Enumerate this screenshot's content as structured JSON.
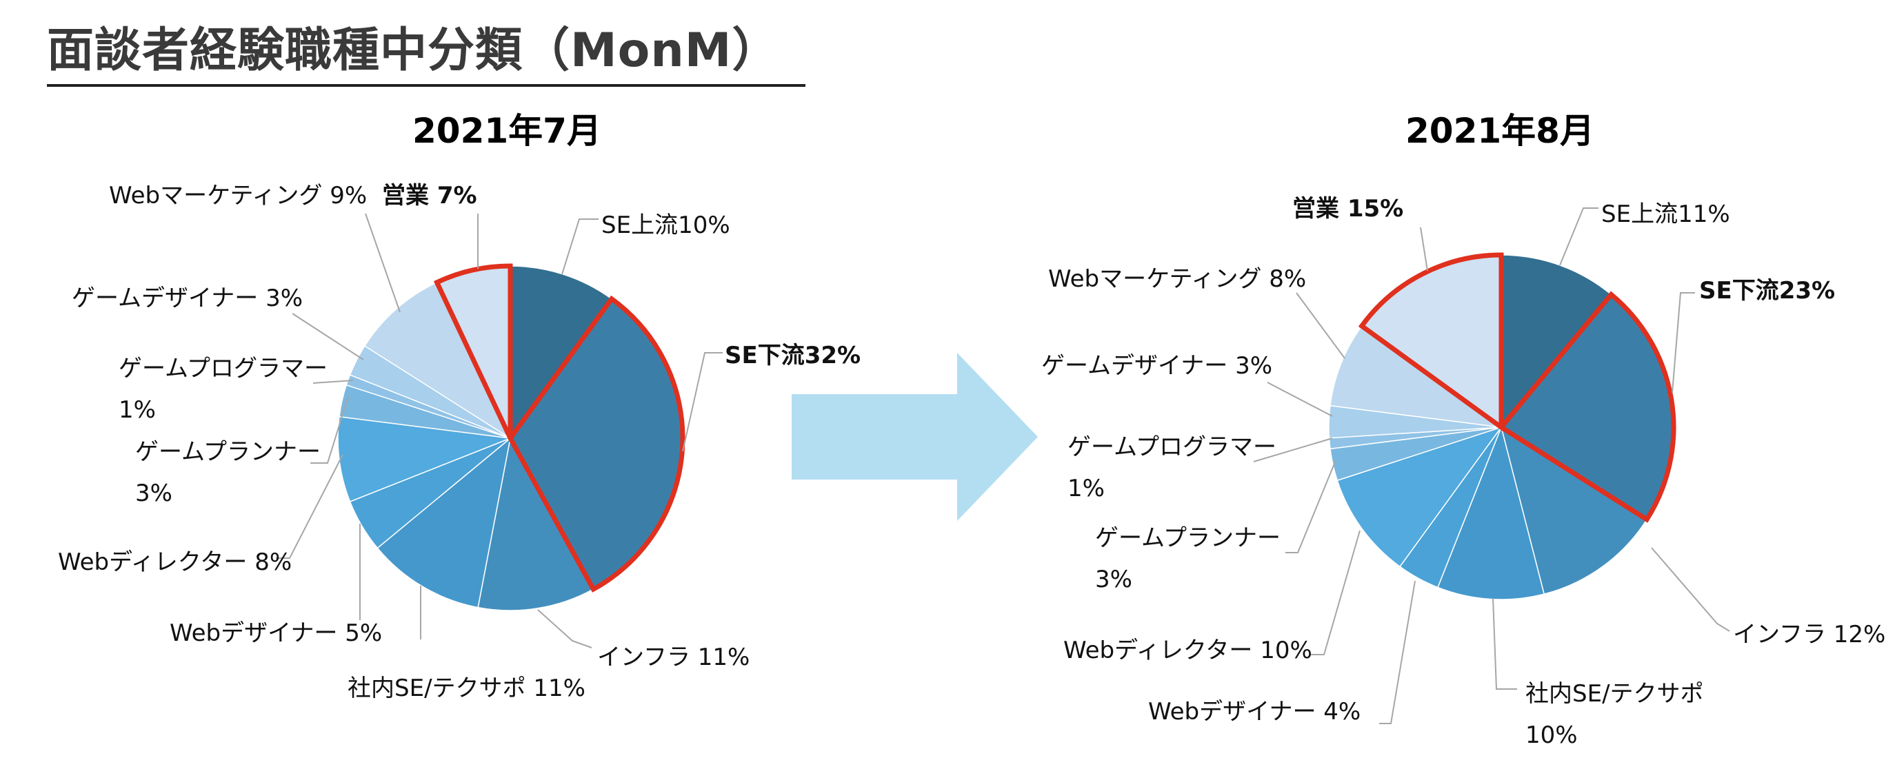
{
  "page": {
    "title": "面談者経験職種中分類（MonM）"
  },
  "arrow": {
    "color": "#b3def2"
  },
  "chart_data": [
    {
      "type": "pie",
      "title": "2021年7月",
      "start_angle_deg": 0,
      "direction": "clockwise",
      "highlight_color": "#e0301e",
      "slices": [
        {
          "name": "SE上流",
          "value": 10,
          "label": "SE上流10%",
          "color": "#326f91",
          "highlight": false,
          "bold": false
        },
        {
          "name": "SE下流",
          "value": 32,
          "label": "SE下流32%",
          "color": "#3b7fa9",
          "highlight": true,
          "bold": true
        },
        {
          "name": "インフラ",
          "value": 11,
          "label": "インフラ 11%",
          "color": "#428fbe",
          "highlight": false,
          "bold": false
        },
        {
          "name": "社内SE/テクサポ",
          "value": 11,
          "label": "社内SE/テクサポ 11%",
          "color": "#4598cc",
          "highlight": false,
          "bold": false
        },
        {
          "name": "Webデザイナー",
          "value": 5,
          "label": "Webデザイナー 5%",
          "color": "#4aa2d7",
          "highlight": false,
          "bold": false
        },
        {
          "name": "Webディレクター",
          "value": 8,
          "label": "Webディレクター 8%",
          "color": "#52aade",
          "highlight": false,
          "bold": false
        },
        {
          "name": "ゲームプランナー",
          "value": 3,
          "label": "ゲームプランナー\n3%",
          "color": "#78b7e0",
          "highlight": false,
          "bold": false
        },
        {
          "name": "ゲームプログラマー",
          "value": 1,
          "label": "ゲームプログラマー\n1%",
          "color": "#8fc2e6",
          "highlight": false,
          "bold": false
        },
        {
          "name": "ゲームデザイナー",
          "value": 3,
          "label": "ゲームデザイナー 3%",
          "color": "#a8cfec",
          "highlight": false,
          "bold": false
        },
        {
          "name": "Webマーケティング",
          "value": 9,
          "label": "Webマーケティング 9%",
          "color": "#bdd8ef",
          "highlight": false,
          "bold": false
        },
        {
          "name": "営業",
          "value": 7,
          "label": "営業 7%",
          "color": "#cfe1f3",
          "highlight": true,
          "bold": true
        }
      ]
    },
    {
      "type": "pie",
      "title": "2021年8月",
      "start_angle_deg": 0,
      "direction": "clockwise",
      "highlight_color": "#e0301e",
      "slices": [
        {
          "name": "SE上流",
          "value": 11,
          "label": "SE上流11%",
          "color": "#326f91",
          "highlight": false,
          "bold": false
        },
        {
          "name": "SE下流",
          "value": 23,
          "label": "SE下流23%",
          "color": "#3b7fa9",
          "highlight": true,
          "bold": true
        },
        {
          "name": "インフラ",
          "value": 12,
          "label": "インフラ 12%",
          "color": "#428fbe",
          "highlight": false,
          "bold": false
        },
        {
          "name": "社内SE/テクサポ",
          "value": 10,
          "label": "社内SE/テクサポ\n10%",
          "color": "#4598cc",
          "highlight": false,
          "bold": false
        },
        {
          "name": "Webデザイナー",
          "value": 4,
          "label": "Webデザイナー 4%",
          "color": "#4aa2d7",
          "highlight": false,
          "bold": false
        },
        {
          "name": "Webディレクター",
          "value": 10,
          "label": "Webディレクター 10%",
          "color": "#52aade",
          "highlight": false,
          "bold": false
        },
        {
          "name": "ゲームプランナー",
          "value": 3,
          "label": "ゲームプランナー\n3%",
          "color": "#78b7e0",
          "highlight": false,
          "bold": false
        },
        {
          "name": "ゲームプログラマー",
          "value": 1,
          "label": "ゲームプログラマー\n1%",
          "color": "#8fc2e6",
          "highlight": false,
          "bold": false
        },
        {
          "name": "ゲームデザイナー",
          "value": 3,
          "label": "ゲームデザイナー 3%",
          "color": "#a8cfec",
          "highlight": false,
          "bold": false
        },
        {
          "name": "Webマーケティング",
          "value": 8,
          "label": "Webマーケティング 8%",
          "color": "#bdd8ef",
          "highlight": false,
          "bold": false
        },
        {
          "name": "営業",
          "value": 15,
          "label": "営業 15%",
          "color": "#cfe1f3",
          "highlight": true,
          "bold": true
        }
      ]
    }
  ]
}
